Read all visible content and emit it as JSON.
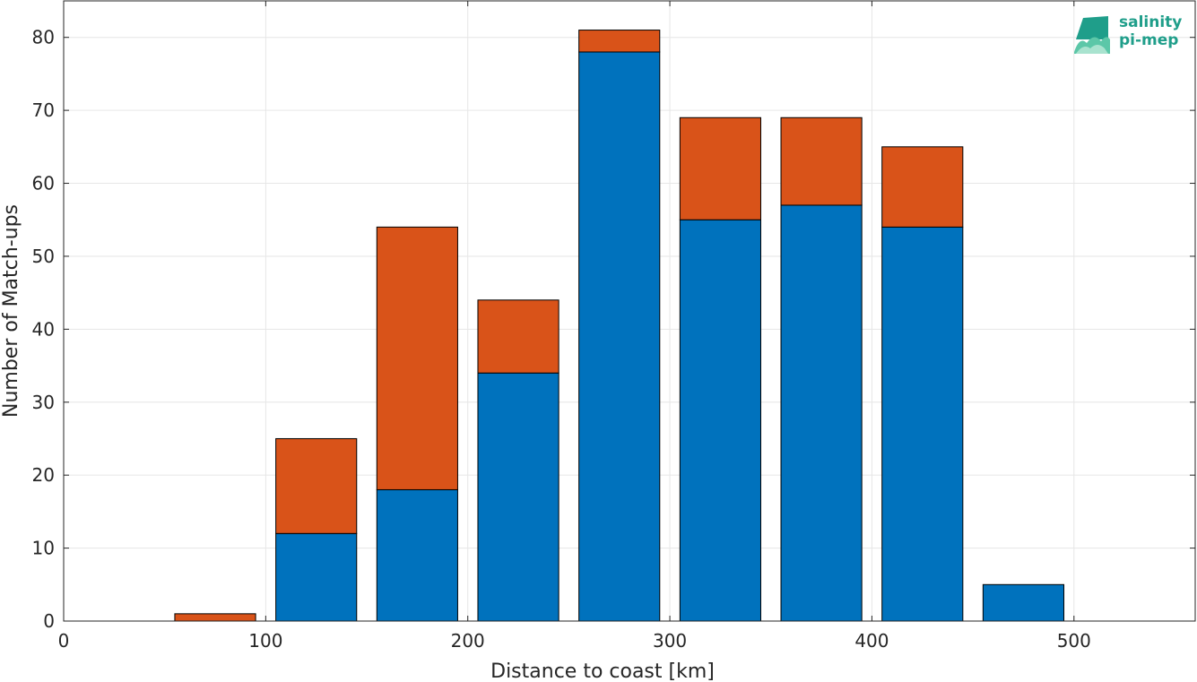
{
  "chart_data": {
    "type": "bar",
    "stacked": true,
    "categories": [
      25,
      75,
      125,
      175,
      225,
      275,
      325,
      375,
      425,
      475,
      525
    ],
    "series": [
      {
        "values": [
          0,
          0,
          12,
          18,
          34,
          78,
          55,
          57,
          54,
          5,
          0
        ],
        "color": "#0072BD"
      },
      {
        "values": [
          0,
          1,
          13,
          36,
          10,
          3,
          14,
          12,
          11,
          0,
          0
        ],
        "color": "#D95319"
      }
    ],
    "xlabel": "Distance to coast [km]",
    "ylabel": "Number of Match-ups",
    "xlim": [
      0,
      560
    ],
    "ylim": [
      0,
      85
    ],
    "xticks": [
      0,
      100,
      200,
      300,
      400,
      500
    ],
    "yticks": [
      0,
      10,
      20,
      30,
      40,
      50,
      60,
      70,
      80
    ],
    "grid": true
  },
  "logo": {
    "line1": "salinity",
    "line2": "pi-mep"
  }
}
